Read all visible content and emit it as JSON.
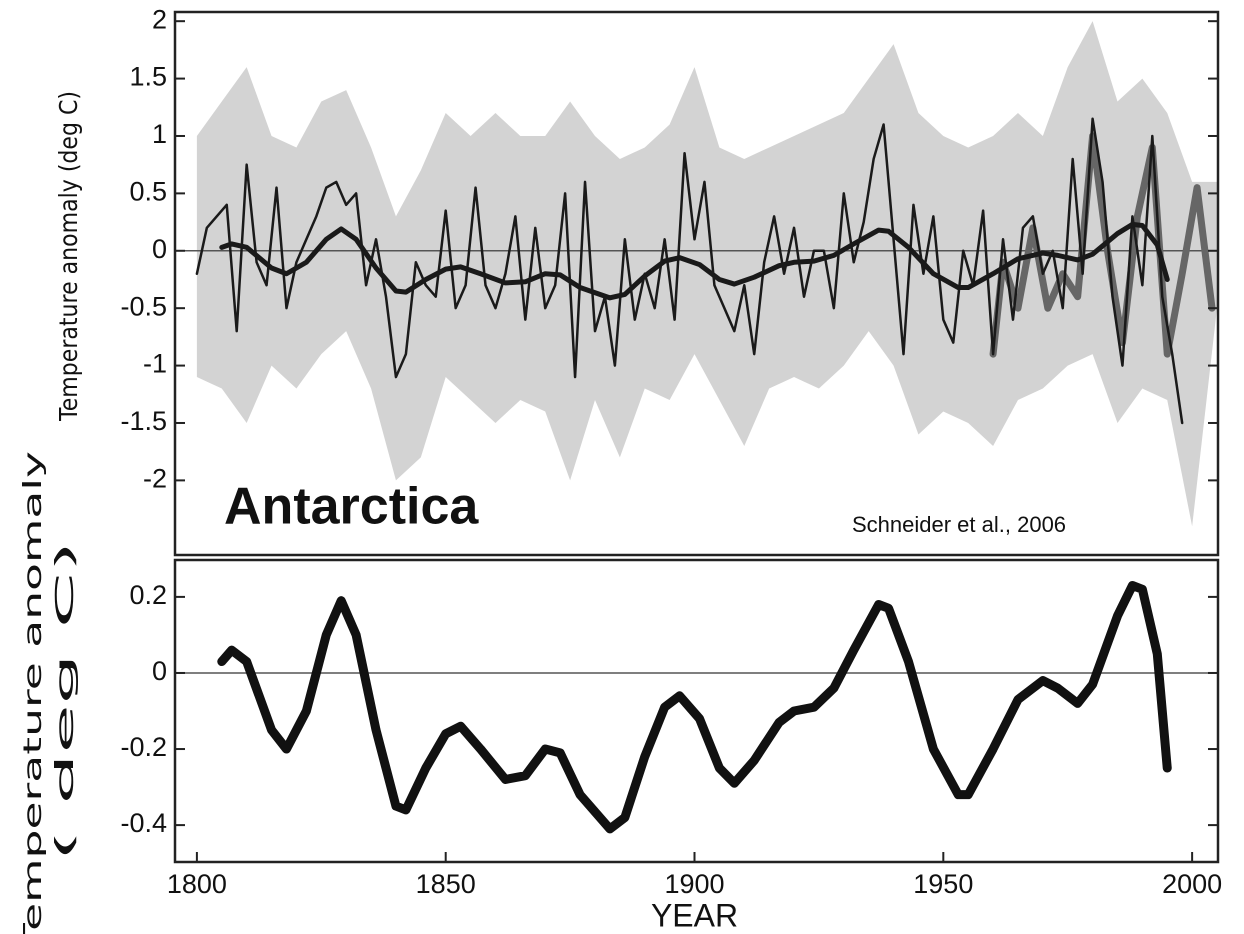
{
  "chart_data": [
    {
      "type": "line",
      "ylabel": "Temperature anomaly (deg C)",
      "annotations": [
        "Antarctica",
        "Schneider et al., 2006"
      ],
      "xlim": [
        1795.6,
        2005.2
      ],
      "ylim": [
        -2.65,
        2.08
      ],
      "yticks": [
        2,
        1.5,
        1,
        0.5,
        0,
        -0.5,
        -1,
        -1.5,
        -2
      ],
      "band": {
        "color": "#d3d3d3",
        "x": [
          1800,
          1805,
          1810,
          1815,
          1820,
          1825,
          1830,
          1835,
          1840,
          1845,
          1850,
          1855,
          1860,
          1865,
          1870,
          1875,
          1880,
          1885,
          1890,
          1895,
          1900,
          1905,
          1910,
          1915,
          1920,
          1925,
          1930,
          1935,
          1940,
          1945,
          1950,
          1955,
          1960,
          1965,
          1970,
          1975,
          1980,
          1985,
          1990,
          1995,
          2000,
          2005
        ],
        "upper": [
          1.0,
          1.3,
          1.6,
          1.0,
          0.9,
          1.3,
          1.4,
          0.9,
          0.3,
          0.7,
          1.2,
          1.0,
          1.2,
          1.0,
          1.0,
          1.3,
          1.0,
          0.8,
          0.9,
          1.1,
          1.6,
          0.9,
          0.8,
          0.9,
          1.0,
          1.1,
          1.2,
          1.5,
          1.8,
          1.2,
          1.0,
          0.9,
          1.0,
          1.2,
          1.0,
          1.6,
          2.0,
          1.3,
          1.5,
          1.2,
          0.6,
          0.6
        ],
        "lower": [
          -1.1,
          -1.2,
          -1.5,
          -1.0,
          -1.2,
          -0.9,
          -0.7,
          -1.2,
          -2.0,
          -1.8,
          -1.1,
          -1.3,
          -1.5,
          -1.3,
          -1.4,
          -2.0,
          -1.3,
          -1.8,
          -1.2,
          -1.3,
          -0.9,
          -1.3,
          -1.7,
          -1.2,
          -1.1,
          -1.2,
          -1.0,
          -0.7,
          -1.0,
          -1.6,
          -1.4,
          -1.5,
          -1.7,
          -1.3,
          -1.2,
          -1.0,
          -0.9,
          -1.5,
          -1.2,
          -1.3,
          -2.4,
          -0.5
        ]
      },
      "series": [
        {
          "color": "#666666",
          "width": 7,
          "x": [
            1960,
            1962,
            1965,
            1968,
            1971,
            1974,
            1977,
            1980,
            1983,
            1986,
            1989,
            1992,
            1995,
            1998,
            2001,
            2004
          ],
          "values": [
            -0.9,
            -0.1,
            -0.5,
            0.2,
            -0.5,
            -0.2,
            -0.4,
            1.0,
            0.0,
            -0.8,
            0.3,
            0.9,
            -0.9,
            -0.2,
            0.55,
            -0.5
          ]
        },
        {
          "color": "#1a1a1a",
          "width": 2.5,
          "x": [
            1800,
            1802,
            1804,
            1806,
            1808,
            1810,
            1812,
            1814,
            1816,
            1818,
            1820,
            1822,
            1824,
            1826,
            1828,
            1830,
            1832,
            1834,
            1836,
            1838,
            1840,
            1842,
            1844,
            1846,
            1848,
            1850,
            1852,
            1854,
            1856,
            1858,
            1860,
            1862,
            1864,
            1866,
            1868,
            1870,
            1872,
            1874,
            1876,
            1878,
            1880,
            1882,
            1884,
            1886,
            1888,
            1890,
            1892,
            1894,
            1896,
            1898,
            1900,
            1902,
            1904,
            1906,
            1908,
            1910,
            1912,
            1914,
            1916,
            1918,
            1920,
            1922,
            1924,
            1926,
            1928,
            1930,
            1932,
            1934,
            1936,
            1938,
            1940,
            1942,
            1944,
            1946,
            1948,
            1950,
            1952,
            1954,
            1956,
            1958,
            1960,
            1962,
            1964,
            1966,
            1968,
            1970,
            1972,
            1974,
            1976,
            1978,
            1980,
            1982,
            1984,
            1986,
            1988,
            1990,
            1992,
            1994,
            1996,
            1998
          ],
          "values": [
            -0.2,
            0.2,
            0.3,
            0.4,
            -0.7,
            0.75,
            -0.1,
            -0.3,
            0.55,
            -0.5,
            -0.1,
            0.1,
            0.3,
            0.55,
            0.6,
            0.4,
            0.5,
            -0.3,
            0.1,
            -0.4,
            -1.1,
            -0.9,
            -0.1,
            -0.3,
            -0.4,
            0.35,
            -0.5,
            -0.3,
            0.55,
            -0.3,
            -0.5,
            -0.2,
            0.3,
            -0.6,
            0.2,
            -0.5,
            -0.3,
            0.5,
            -1.1,
            0.6,
            -0.7,
            -0.4,
            -1.0,
            0.1,
            -0.6,
            -0.2,
            -0.5,
            0.1,
            -0.6,
            0.85,
            0.1,
            0.6,
            -0.3,
            -0.5,
            -0.7,
            -0.3,
            -0.9,
            -0.1,
            0.3,
            -0.2,
            0.2,
            -0.4,
            0.0,
            0.0,
            -0.5,
            0.5,
            -0.1,
            0.25,
            0.8,
            1.1,
            0.1,
            -0.9,
            0.4,
            -0.2,
            0.3,
            -0.6,
            -0.8,
            0.0,
            -0.3,
            0.35,
            -0.9,
            0.1,
            -0.6,
            0.2,
            0.3,
            -0.2,
            0.0,
            -0.5,
            0.8,
            -0.2,
            1.15,
            0.6,
            -0.4,
            -1.0,
            0.3,
            -0.3,
            1.0,
            -0.4,
            -0.9,
            -1.5
          ]
        },
        {
          "color": "#1a1a1a",
          "width": 5,
          "x": [
            1805,
            1807,
            1810,
            1815,
            1818,
            1822,
            1826,
            1829,
            1832,
            1836,
            1840,
            1842,
            1846,
            1850,
            1853,
            1857,
            1862,
            1866,
            1870,
            1873,
            1877,
            1883,
            1886,
            1890,
            1894,
            1897,
            1901,
            1905,
            1908,
            1912,
            1917,
            1920,
            1924,
            1928,
            1932,
            1937,
            1939,
            1943,
            1948,
            1953,
            1955,
            1960,
            1965,
            1970,
            1973,
            1977,
            1980,
            1985,
            1988,
            1990,
            1993,
            1995
          ],
          "values": [
            0.03,
            0.06,
            0.03,
            -0.15,
            -0.2,
            -0.1,
            0.1,
            0.19,
            0.1,
            -0.15,
            -0.35,
            -0.36,
            -0.25,
            -0.16,
            -0.14,
            -0.2,
            -0.28,
            -0.27,
            -0.2,
            -0.21,
            -0.32,
            -0.41,
            -0.38,
            -0.22,
            -0.09,
            -0.06,
            -0.12,
            -0.25,
            -0.29,
            -0.23,
            -0.13,
            -0.1,
            -0.09,
            -0.04,
            0.06,
            0.18,
            0.17,
            0.03,
            -0.2,
            -0.32,
            -0.32,
            -0.2,
            -0.07,
            -0.02,
            -0.04,
            -0.08,
            -0.03,
            0.15,
            0.23,
            0.22,
            0.05,
            -0.25
          ]
        }
      ]
    },
    {
      "type": "line",
      "ylabel": [
        "Temperature anomaly",
        "( deg C)"
      ],
      "xlabel": "YEAR",
      "xlim": [
        1795.6,
        2005.2
      ],
      "xticks": [
        1800,
        1850,
        1900,
        1950,
        2000
      ],
      "ylim": [
        -0.497,
        0.297
      ],
      "yticks": [
        0.2,
        0,
        -0.2,
        -0.4
      ],
      "series": [
        {
          "color": "#111111",
          "width": 9,
          "x": [
            1805,
            1807,
            1810,
            1815,
            1818,
            1822,
            1826,
            1829,
            1832,
            1836,
            1840,
            1842,
            1846,
            1850,
            1853,
            1857,
            1862,
            1866,
            1870,
            1873,
            1877,
            1883,
            1886,
            1890,
            1894,
            1897,
            1901,
            1905,
            1908,
            1912,
            1917,
            1920,
            1924,
            1928,
            1932,
            1937,
            1939,
            1943,
            1948,
            1953,
            1955,
            1960,
            1965,
            1970,
            1973,
            1977,
            1980,
            1985,
            1988,
            1990,
            1993,
            1995
          ],
          "values": [
            0.03,
            0.06,
            0.03,
            -0.15,
            -0.2,
            -0.1,
            0.1,
            0.19,
            0.1,
            -0.15,
            -0.35,
            -0.36,
            -0.25,
            -0.16,
            -0.14,
            -0.2,
            -0.28,
            -0.27,
            -0.2,
            -0.21,
            -0.32,
            -0.41,
            -0.38,
            -0.22,
            -0.09,
            -0.06,
            -0.12,
            -0.25,
            -0.29,
            -0.23,
            -0.13,
            -0.1,
            -0.09,
            -0.04,
            0.06,
            0.18,
            0.17,
            0.03,
            -0.2,
            -0.32,
            -0.32,
            -0.2,
            -0.07,
            -0.02,
            -0.04,
            -0.08,
            -0.03,
            0.15,
            0.23,
            0.22,
            0.05,
            -0.25
          ]
        }
      ]
    }
  ]
}
